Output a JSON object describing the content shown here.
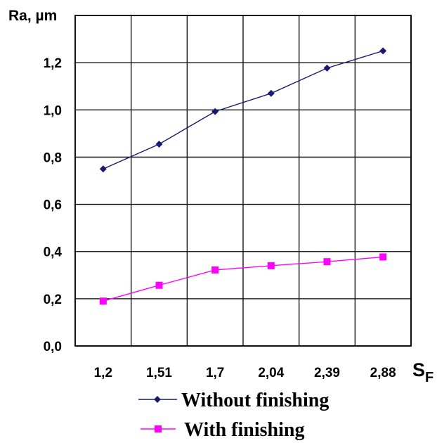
{
  "chart_data": {
    "type": "line",
    "categories": [
      "1,2",
      "1,51",
      "1,7",
      "2,04",
      "2,39",
      "2,88"
    ],
    "yticks": [
      "0,0",
      "0,2",
      "0,4",
      "0,6",
      "0,8",
      "1,0",
      "1,2"
    ],
    "ylim": [
      0,
      1.4
    ],
    "ylabel": "Ra, µm",
    "xlabel": "S",
    "xlabel_sub": "F",
    "grid": true,
    "legend_position": "bottom",
    "series": [
      {
        "name": "Without finishing",
        "values": [
          0.75,
          0.855,
          0.993,
          1.07,
          1.177,
          1.25
        ],
        "color": "#1a1a6e",
        "marker": "diamond"
      },
      {
        "name": "With finishing",
        "values": [
          0.19,
          0.257,
          0.322,
          0.34,
          0.357,
          0.377
        ],
        "color": "#ff00ff",
        "marker": "square"
      }
    ]
  }
}
